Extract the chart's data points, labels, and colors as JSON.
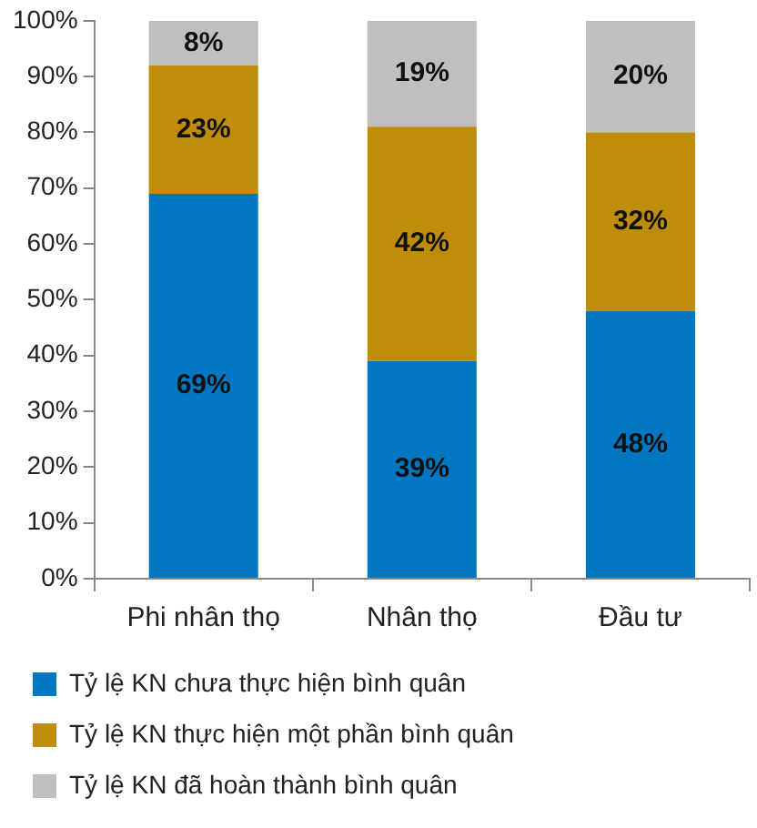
{
  "chart_data": {
    "type": "bar",
    "stacked": true,
    "categories": [
      "Phi nhân thọ",
      "Nhân thọ",
      "Đầu tư"
    ],
    "series": [
      {
        "name": "Tỷ lệ KN chưa thực hiện bình quân",
        "color": "#0077c0",
        "values": [
          69,
          39,
          48
        ],
        "value_labels": [
          "69%",
          "39%",
          "48%"
        ]
      },
      {
        "name": "Tỷ lệ KN thực hiện một phần bình quân",
        "color": "#bf8c0c",
        "values": [
          23,
          42,
          32
        ],
        "value_labels": [
          "23%",
          "42%",
          "32%"
        ]
      },
      {
        "name": "Tỷ lệ KN đã hoàn thành bình quân",
        "color": "#bfbfbf",
        "values": [
          8,
          19,
          20
        ],
        "value_labels": [
          "8%",
          "19%",
          "20%"
        ]
      }
    ],
    "ylim": [
      0,
      100
    ],
    "yticks": [
      {
        "value": 0,
        "label": "0%"
      },
      {
        "value": 10,
        "label": "10%"
      },
      {
        "value": 20,
        "label": "20%"
      },
      {
        "value": 30,
        "label": "30%"
      },
      {
        "value": 40,
        "label": "40%"
      },
      {
        "value": 50,
        "label": "50%"
      },
      {
        "value": 60,
        "label": "60%"
      },
      {
        "value": 70,
        "label": "70%"
      },
      {
        "value": 80,
        "label": "80%"
      },
      {
        "value": 90,
        "label": "90%"
      },
      {
        "value": 100,
        "label": "100%"
      }
    ],
    "grid": false,
    "legend": "bottom"
  }
}
